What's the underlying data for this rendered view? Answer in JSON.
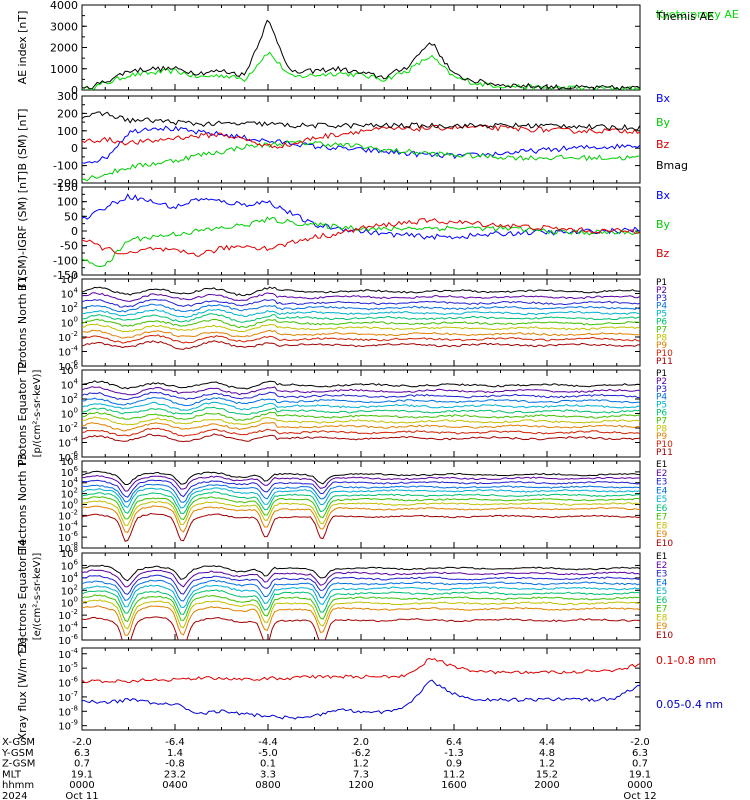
{
  "chart_data": [
    {
      "type": "line",
      "ylabel": "AE index [nT]",
      "ylim": [
        0,
        4000
      ],
      "yticks": [
        "0",
        "1000",
        "2000",
        "3000",
        "4000"
      ],
      "series": [
        {
          "name": "Kyoto proxy AE",
          "color": "#00dd00",
          "values": [
            0,
            300,
            700,
            800,
            900,
            600,
            700,
            500,
            1800,
            600,
            700,
            800,
            700,
            500,
            900,
            1600,
            600,
            300,
            200,
            150,
            100,
            100,
            80,
            80,
            60
          ]
        },
        {
          "name": "Themis AE",
          "color": "#000000",
          "values": [
            0,
            400,
            900,
            1000,
            1000,
            800,
            900,
            700,
            3300,
            800,
            900,
            1000,
            800,
            600,
            1100,
            2300,
            700,
            400,
            250,
            200,
            150,
            120,
            100,
            100,
            80
          ]
        }
      ]
    },
    {
      "type": "line",
      "ylabel": "B (SM) [nT]",
      "ylim": [
        -200,
        300
      ],
      "yticks": [
        "-200",
        "-100",
        "0",
        "100",
        "200",
        "300"
      ],
      "series": [
        {
          "name": "Bx",
          "color": "#0000ff",
          "values": [
            -80,
            -60,
            90,
            120,
            110,
            90,
            80,
            60,
            40,
            30,
            10,
            0,
            -10,
            -20,
            -30,
            -40,
            -45,
            -40,
            -30,
            -20,
            -10,
            0,
            5,
            10,
            20
          ]
        },
        {
          "name": "By",
          "color": "#00cc00",
          "values": [
            -180,
            -150,
            -110,
            -90,
            -70,
            -40,
            -20,
            10,
            20,
            30,
            30,
            20,
            10,
            -10,
            -20,
            -30,
            -40,
            -45,
            -50,
            -55,
            -55,
            -55,
            -55,
            -55,
            -55
          ]
        },
        {
          "name": "Bz",
          "color": "#dd0000",
          "values": [
            40,
            50,
            30,
            40,
            60,
            70,
            80,
            50,
            10,
            20,
            60,
            80,
            100,
            110,
            110,
            115,
            120,
            120,
            115,
            110,
            105,
            100,
            100,
            100,
            100
          ]
        },
        {
          "name": "Bmag",
          "color": "#000000",
          "values": [
            180,
            200,
            160,
            160,
            150,
            140,
            140,
            140,
            140,
            130,
            130,
            130,
            130,
            130,
            130,
            130,
            130,
            130,
            130,
            130,
            130,
            130,
            120,
            120,
            120
          ]
        }
      ]
    },
    {
      "type": "line",
      "ylabel": "B (SM)-IGRF (SM) [nT]",
      "ylim": [
        -150,
        150
      ],
      "yticks": [
        "-150",
        "-100",
        "-50",
        "0",
        "50",
        "100",
        "150"
      ],
      "series": [
        {
          "name": "Bx",
          "color": "#0000ff",
          "values": [
            40,
            80,
            120,
            100,
            80,
            110,
            100,
            90,
            100,
            60,
            20,
            10,
            0,
            -10,
            -15,
            -20,
            -20,
            -15,
            -10,
            -5,
            -5,
            -5,
            0,
            0,
            5
          ]
        },
        {
          "name": "By",
          "color": "#00cc00",
          "values": [
            -100,
            -120,
            -30,
            -20,
            -10,
            0,
            10,
            20,
            40,
            30,
            20,
            15,
            10,
            5,
            10,
            10,
            10,
            10,
            8,
            5,
            0,
            -5,
            -5,
            -5,
            -5
          ]
        },
        {
          "name": "Bz",
          "color": "#dd0000",
          "values": [
            -30,
            -60,
            -80,
            -60,
            -70,
            -80,
            -60,
            -50,
            -60,
            -40,
            -20,
            -10,
            10,
            20,
            30,
            35,
            30,
            25,
            20,
            15,
            10,
            5,
            0,
            0,
            0
          ]
        }
      ]
    },
    {
      "type": "line",
      "log": true,
      "ylabel": "Protons North T1",
      "ylim_exp": [
        -6,
        6
      ],
      "ytick_exps": [
        -6,
        -4,
        -2,
        0,
        2,
        4,
        6
      ],
      "legend": [
        "P1",
        "P2",
        "P3",
        "P4",
        "P5",
        "P6",
        "P7",
        "P8",
        "P9",
        "P10",
        "P11"
      ],
      "colors": [
        "#000000",
        "#5a00a0",
        "#2020d0",
        "#0070e0",
        "#00b0d0",
        "#00c070",
        "#40c000",
        "#c0c000",
        "#e08000",
        "#d02000",
        "#a00000"
      ],
      "levels": [
        4.3,
        3.5,
        2.7,
        2.0,
        1.3,
        0.6,
        -0.1,
        -0.8,
        -1.6,
        -2.3,
        -3.1
      ]
    },
    {
      "type": "line",
      "log": true,
      "ylabel": "Protons Equator T2",
      "yunit": "[p/(cm²-s-sr-keV)]",
      "ylim_exp": [
        -6,
        6
      ],
      "ytick_exps": [
        -6,
        -4,
        -2,
        0,
        2,
        4,
        6
      ],
      "legend": [
        "P1",
        "P2",
        "P3",
        "P4",
        "P5",
        "P6",
        "P7",
        "P8",
        "P9",
        "P10",
        "P11"
      ],
      "colors": [
        "#000000",
        "#5a00a0",
        "#2020d0",
        "#0070e0",
        "#00b0d0",
        "#00c070",
        "#40c000",
        "#c0c000",
        "#e08000",
        "#d02000",
        "#a00000"
      ],
      "levels": [
        3.9,
        3.1,
        2.4,
        1.7,
        1.0,
        0.3,
        -0.4,
        -1.1,
        -1.8,
        -2.6,
        -3.4
      ]
    },
    {
      "type": "line",
      "log": true,
      "ylabel": "Electrons North T3",
      "ylim_exp": [
        -8,
        8
      ],
      "ytick_exps": [
        -8,
        -6,
        -4,
        -2,
        0,
        2,
        4,
        6,
        8
      ],
      "legend": [
        "E1",
        "E2",
        "E3",
        "E4",
        "E5",
        "E6",
        "E7",
        "E8",
        "E9",
        "E10"
      ],
      "colors": [
        "#000000",
        "#5a00a0",
        "#2020d0",
        "#0070e0",
        "#00b0d0",
        "#00c070",
        "#40c000",
        "#c0c000",
        "#e08000",
        "#a00000"
      ],
      "levels": [
        5.5,
        4.8,
        4.0,
        3.2,
        2.5,
        1.7,
        0.9,
        0.1,
        -0.8,
        -2.2
      ]
    },
    {
      "type": "line",
      "log": true,
      "ylabel": "Electrons Equator T4",
      "yunit": "[e/(cm²-s-sr-keV)]",
      "ylim_exp": [
        -6,
        8
      ],
      "ytick_exps": [
        -6,
        -4,
        -2,
        0,
        2,
        4,
        6,
        8
      ],
      "legend": [
        "E1",
        "E2",
        "E3",
        "E4",
        "E5",
        "E6",
        "E7",
        "E8",
        "E9",
        "E10"
      ],
      "colors": [
        "#000000",
        "#5a00a0",
        "#2020d0",
        "#0070e0",
        "#00b0d0",
        "#00c070",
        "#40c000",
        "#c0c000",
        "#e08000",
        "#a00000"
      ],
      "levels": [
        5.5,
        4.7,
        3.9,
        3.1,
        2.3,
        1.5,
        0.7,
        -0.1,
        -1.0,
        -2.8
      ]
    },
    {
      "type": "line",
      "log": true,
      "ylabel": "Xray flux [W/m^2]",
      "ylim_exp": [
        -9.3,
        -3.6
      ],
      "ytick_exps": [
        -9,
        -8,
        -7,
        -6,
        -5,
        -4
      ],
      "series": [
        {
          "name": "0.1-0.8 nm",
          "color": "#dd0000",
          "values": [
            -5.9,
            -5.9,
            -5.9,
            -5.8,
            -5.8,
            -5.7,
            -5.7,
            -5.8,
            -5.7,
            -5.7,
            -5.6,
            -5.6,
            -5.6,
            -5.6,
            -5.5,
            -4.3,
            -4.9,
            -5.2,
            -5.3,
            -5.3,
            -5.3,
            -5.3,
            -5.2,
            -5.2,
            -4.7
          ]
        },
        {
          "name": "0.05-0.4 nm",
          "color": "#0000cc",
          "values": [
            -7.3,
            -7.4,
            -7.2,
            -7.4,
            -7.5,
            -8.2,
            -8.0,
            -8.2,
            -8.3,
            -8.5,
            -8.3,
            -7.9,
            -8.0,
            -8.1,
            -7.6,
            -5.9,
            -6.8,
            -7.2,
            -7.2,
            -7.2,
            -7.2,
            -7.1,
            -7.2,
            -7.1,
            -6.1
          ]
        }
      ]
    }
  ],
  "xaxis": {
    "rows": [
      {
        "label": "X-GSM",
        "values": [
          "-2.0",
          "-6.4",
          "-4.4",
          "2.0",
          "6.4",
          "4.4",
          "-2.0"
        ]
      },
      {
        "label": "Y-GSM",
        "values": [
          "6.3",
          "1.4",
          "-5.0",
          "-6.2",
          "-1.3",
          "4.8",
          "6.3"
        ]
      },
      {
        "label": "Z-GSM",
        "values": [
          "0.7",
          "-0.8",
          "0.1",
          "1.2",
          "0.9",
          "1.2",
          "0.7"
        ]
      },
      {
        "label": "MLT",
        "values": [
          "19.1",
          "23.2",
          "3.3",
          "7.3",
          "11.2",
          "15.2",
          "19.1"
        ]
      },
      {
        "label": "hhmm",
        "values": [
          "0000",
          "0400",
          "0800",
          "1200",
          "1600",
          "2000",
          "0000"
        ]
      },
      {
        "label": "2024",
        "values": [
          "Oct 11",
          "",
          "",
          "",
          "",
          "",
          "Oct 12"
        ]
      }
    ]
  }
}
